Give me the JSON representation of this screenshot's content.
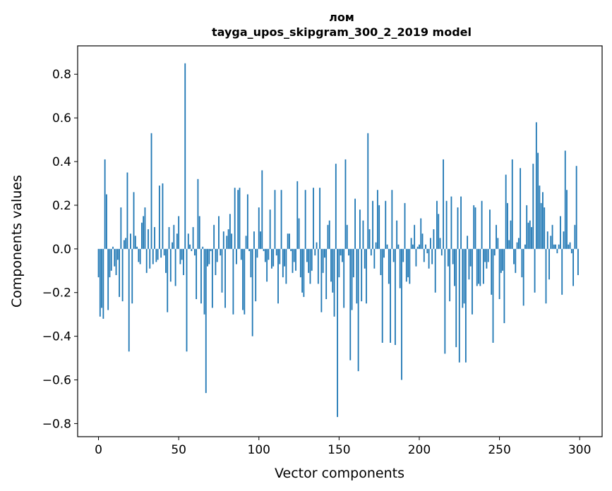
{
  "chart_data": {
    "type": "bar",
    "title": "лом",
    "subtitle": "tayga_upos_skipgram_300_2_2019 model",
    "xlabel": "Vector components",
    "ylabel": "Components values",
    "xlim": [
      -13,
      314
    ],
    "ylim": [
      -0.86,
      0.93
    ],
    "xticks": [
      0,
      50,
      100,
      150,
      200,
      250,
      300
    ],
    "xtick_labels": [
      "0",
      "50",
      "100",
      "150",
      "200",
      "250",
      "300"
    ],
    "yticks": [
      -0.8,
      -0.6,
      -0.4,
      -0.2,
      0.0,
      0.2,
      0.4,
      0.6,
      0.8
    ],
    "ytick_labels": [
      "−0.8",
      "−0.6",
      "−0.4",
      "−0.2",
      "0.0",
      "0.2",
      "0.4",
      "0.6",
      "0.8"
    ],
    "grid": false,
    "bar_color": "#1f77b4",
    "x": [
      0,
      1,
      2,
      3,
      4,
      5,
      6,
      7,
      8,
      9,
      10,
      11,
      12,
      13,
      14,
      15,
      16,
      17,
      18,
      19,
      20,
      21,
      22,
      23,
      24,
      25,
      26,
      27,
      28,
      29,
      30,
      31,
      32,
      33,
      34,
      35,
      36,
      37,
      38,
      39,
      40,
      41,
      42,
      43,
      44,
      45,
      46,
      47,
      48,
      49,
      50,
      51,
      52,
      53,
      54,
      55,
      56,
      57,
      58,
      59,
      60,
      61,
      62,
      63,
      64,
      65,
      66,
      67,
      68,
      69,
      70,
      71,
      72,
      73,
      74,
      75,
      76,
      77,
      78,
      79,
      80,
      81,
      82,
      83,
      84,
      85,
      86,
      87,
      88,
      89,
      90,
      91,
      92,
      93,
      94,
      95,
      96,
      97,
      98,
      99,
      100,
      101,
      102,
      103,
      104,
      105,
      106,
      107,
      108,
      109,
      110,
      111,
      112,
      113,
      114,
      115,
      116,
      117,
      118,
      119,
      120,
      121,
      122,
      123,
      124,
      125,
      126,
      127,
      128,
      129,
      130,
      131,
      132,
      133,
      134,
      135,
      136,
      137,
      138,
      139,
      140,
      141,
      142,
      143,
      144,
      145,
      146,
      147,
      148,
      149,
      150,
      151,
      152,
      153,
      154,
      155,
      156,
      157,
      158,
      159,
      160,
      161,
      162,
      163,
      164,
      165,
      166,
      167,
      168,
      169,
      170,
      171,
      172,
      173,
      174,
      175,
      176,
      177,
      178,
      179,
      180,
      181,
      182,
      183,
      184,
      185,
      186,
      187,
      188,
      189,
      190,
      191,
      192,
      193,
      194,
      195,
      196,
      197,
      198,
      199,
      200,
      201,
      202,
      203,
      204,
      205,
      206,
      207,
      208,
      209,
      210,
      211,
      212,
      213,
      214,
      215,
      216,
      217,
      218,
      219,
      220,
      221,
      222,
      223,
      224,
      225,
      226,
      227,
      228,
      229,
      230,
      231,
      232,
      233,
      234,
      235,
      236,
      237,
      238,
      239,
      240,
      241,
      242,
      243,
      244,
      245,
      246,
      247,
      248,
      249,
      250,
      251,
      252,
      253,
      254,
      255,
      256,
      257,
      258,
      259,
      260,
      261,
      262,
      263,
      264,
      265,
      266,
      267,
      268,
      269,
      270,
      271,
      272,
      273,
      274,
      275,
      276,
      277,
      278,
      279,
      280,
      281,
      282,
      283,
      284,
      285,
      286,
      287,
      288,
      289,
      290,
      291,
      292,
      293,
      294,
      295,
      296,
      297,
      298,
      299
    ],
    "values": [
      -0.13,
      -0.31,
      -0.27,
      -0.32,
      0.41,
      0.25,
      -0.28,
      -0.13,
      -0.1,
      0.01,
      -0.08,
      -0.12,
      -0.05,
      -0.22,
      0.19,
      -0.24,
      0.04,
      0.05,
      0.35,
      -0.47,
      0.07,
      -0.25,
      0.26,
      0.06,
      0.01,
      -0.06,
      -0.07,
      0.12,
      0.15,
      0.19,
      -0.11,
      0.09,
      -0.09,
      0.53,
      -0.07,
      0.1,
      -0.06,
      -0.05,
      0.29,
      -0.04,
      0.3,
      -0.03,
      -0.11,
      -0.29,
      0.1,
      -0.15,
      0.03,
      0.11,
      -0.17,
      0.07,
      0.15,
      -0.07,
      -0.05,
      -0.12,
      0.85,
      -0.47,
      0.07,
      0.02,
      -0.01,
      0.1,
      -0.03,
      -0.23,
      0.32,
      0.15,
      -0.25,
      0.01,
      -0.3,
      -0.66,
      -0.08,
      -0.07,
      -0.01,
      -0.27,
      0.11,
      -0.12,
      -0.06,
      0.15,
      -0.03,
      -0.2,
      0.08,
      -0.27,
      0.06,
      0.09,
      0.16,
      0.07,
      -0.3,
      0.28,
      -0.07,
      0.27,
      0.28,
      -0.05,
      -0.28,
      -0.3,
      0.06,
      0.25,
      -0.01,
      -0.13,
      -0.4,
      0.08,
      -0.24,
      -0.04,
      0.19,
      0.08,
      0.36,
      -0.01,
      -0.06,
      -0.15,
      -0.05,
      0.18,
      -0.09,
      -0.08,
      0.27,
      -0.03,
      -0.25,
      -0.07,
      0.27,
      -0.13,
      -0.08,
      -0.16,
      0.07,
      0.07,
      -0.01,
      -0.11,
      -0.06,
      -0.1,
      0.31,
      0.14,
      -0.13,
      -0.2,
      -0.22,
      0.27,
      -0.06,
      -0.11,
      -0.16,
      -0.1,
      0.28,
      -0.03,
      0.03,
      -0.16,
      0.28,
      -0.29,
      -0.11,
      -0.04,
      -0.23,
      0.11,
      0.13,
      -0.15,
      -0.2,
      -0.31,
      0.39,
      -0.77,
      -0.13,
      -0.03,
      -0.06,
      -0.27,
      0.41,
      0.11,
      -0.03,
      -0.51,
      -0.28,
      -0.13,
      0.23,
      -0.25,
      -0.56,
      0.18,
      -0.24,
      0.13,
      -0.09,
      -0.25,
      0.53,
      0.09,
      -0.03,
      0.22,
      -0.09,
      0.03,
      0.27,
      0.2,
      -0.12,
      -0.43,
      -0.04,
      0.22,
      0.02,
      -0.16,
      -0.43,
      0.27,
      -0.06,
      -0.44,
      0.13,
      0.02,
      -0.18,
      -0.6,
      -0.06,
      0.21,
      -0.15,
      -0.13,
      -0.16,
      0.05,
      0.02,
      0.11,
      -0.08,
      0.01,
      0.02,
      0.14,
      0.07,
      -0.06,
      0.02,
      -0.02,
      -0.09,
      0.05,
      -0.07,
      0.09,
      -0.2,
      0.22,
      0.16,
      0.05,
      -0.03,
      0.41,
      -0.48,
      0.22,
      -0.08,
      -0.24,
      0.24,
      -0.07,
      -0.17,
      -0.45,
      0.19,
      -0.52,
      0.24,
      -0.27,
      -0.25,
      -0.52,
      0.06,
      -0.14,
      -0.08,
      -0.3,
      0.2,
      0.19,
      -0.17,
      -0.16,
      -0.17,
      0.22,
      -0.16,
      -0.06,
      -0.09,
      -0.06,
      0.18,
      -0.21,
      -0.43,
      -0.03,
      0.11,
      0.05,
      -0.23,
      -0.11,
      -0.1,
      -0.34,
      0.34,
      0.21,
      0.04,
      0.13,
      0.41,
      -0.07,
      -0.11,
      0.03,
      0.05,
      0.37,
      -0.13,
      -0.26,
      0.02,
      0.2,
      0.12,
      0.13,
      0.1,
      0.39,
      -0.2,
      0.58,
      0.44,
      0.29,
      0.21,
      0.26,
      0.19,
      -0.25,
      0.08,
      -0.14,
      0.06,
      0.11,
      0.02,
      0.02,
      -0.02,
      0.02,
      0.15,
      -0.21,
      0.08,
      0.45,
      0.27,
      0.02,
      0.03,
      -0.02,
      -0.17,
      0.11,
      0.38,
      -0.12
    ]
  }
}
